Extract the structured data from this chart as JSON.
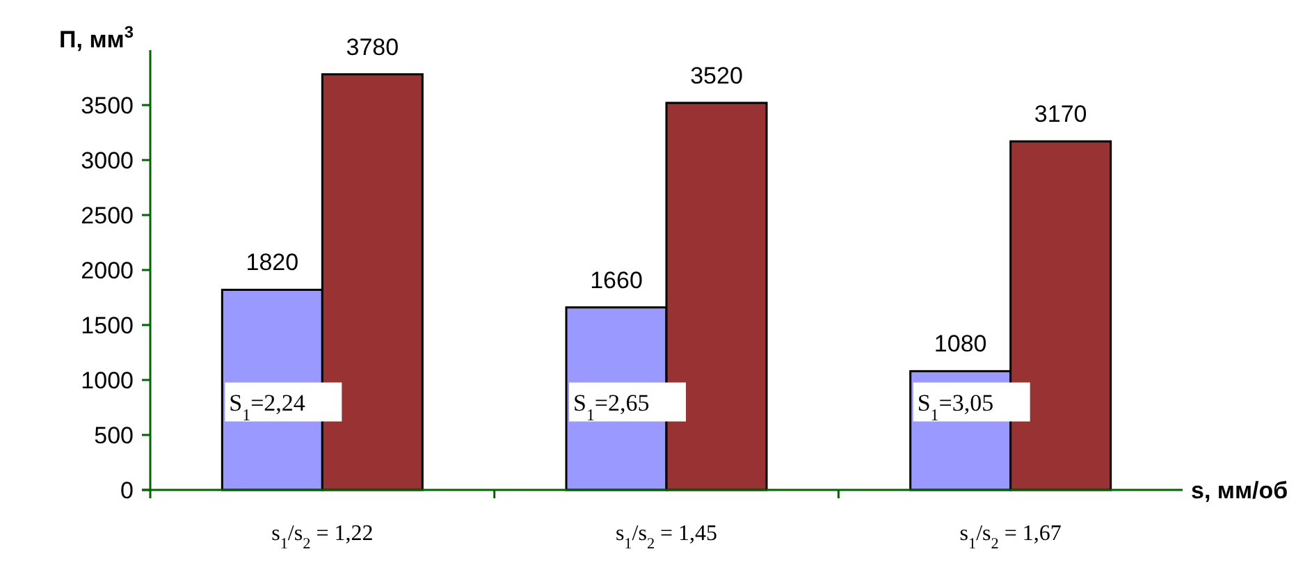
{
  "chart_data": {
    "type": "bar",
    "ylabel": "П, мм$^{3}$",
    "xlabel": "s, мм/об",
    "categories": [
      "s$_{1}$/s$_{2}$ = 1,22",
      "s$_{1}$/s$_{2}$ = 1,45",
      "s$_{1}$/s$_{2}$ = 1,67"
    ],
    "series": [
      {
        "color": "#9999ff",
        "values": [
          1820,
          1660,
          1080
        ]
      },
      {
        "color": "#993333",
        "values": [
          3780,
          3520,
          3170
        ]
      }
    ],
    "ylim": [
      0,
      4000
    ],
    "yticks": [
      0,
      500,
      1000,
      1500,
      2000,
      2500,
      3000,
      3500
    ],
    "data_labels": true,
    "grid": false,
    "annotations": [
      {
        "text": "S$_{1}$=2,24",
        "x": "s$_{1}$/s$_{2}$ = 1,22",
        "y": 800
      },
      {
        "text": "S$_{1}$=2,65",
        "x": "s$_{1}$/s$_{2}$ = 1,45",
        "y": 800
      },
      {
        "text": "S$_{1}$=3,05",
        "x": "s$_{1}$/s$_{2}$ = 1,67",
        "y": 800
      }
    ]
  }
}
